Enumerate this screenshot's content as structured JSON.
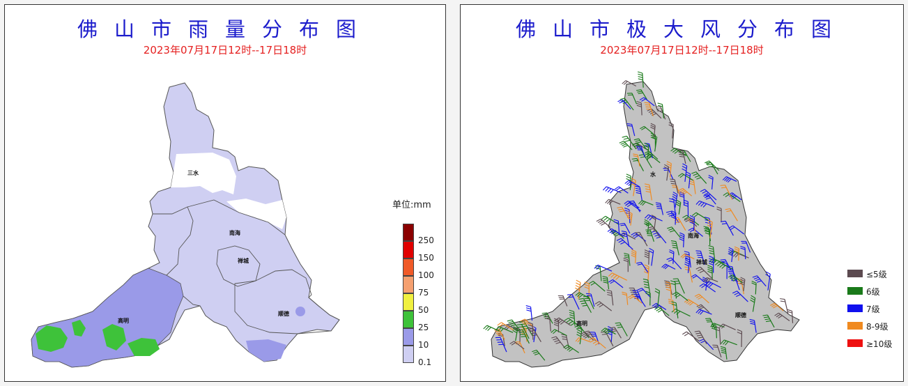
{
  "rain_map": {
    "title": "佛山市雨量分布图",
    "subtitle": "2023年07月17日12时--17日18时",
    "unit": "单位:mm",
    "places": [
      "三水",
      "南海",
      "禅城",
      "顺德",
      "高明"
    ],
    "legend": [
      {
        "label": "250",
        "color": "#8b0000"
      },
      {
        "label": "150",
        "color": "#e00000"
      },
      {
        "label": "100",
        "color": "#f05a28"
      },
      {
        "label": "75",
        "color": "#f5a070"
      },
      {
        "label": "50",
        "color": "#f0f040"
      },
      {
        "label": "25",
        "color": "#3ec23a"
      },
      {
        "label": "10",
        "color": "#9a9ae8"
      },
      {
        "label": "0.1",
        "color": "#cfcff2"
      }
    ]
  },
  "wind_map": {
    "title": "佛山市极大风分布图",
    "subtitle": "2023年07月17日12时--17日18时",
    "places": [
      "水",
      "南海",
      "禅城",
      "顺德",
      "高明"
    ],
    "legend": [
      {
        "label": "≤5级",
        "color": "#5c4a50"
      },
      {
        "label": "6级",
        "color": "#1a7a1a"
      },
      {
        "label": "7级",
        "color": "#1010ee"
      },
      {
        "label": "8-9级",
        "color": "#f08a20"
      },
      {
        "label": "≥10级",
        "color": "#ee1010"
      }
    ]
  }
}
